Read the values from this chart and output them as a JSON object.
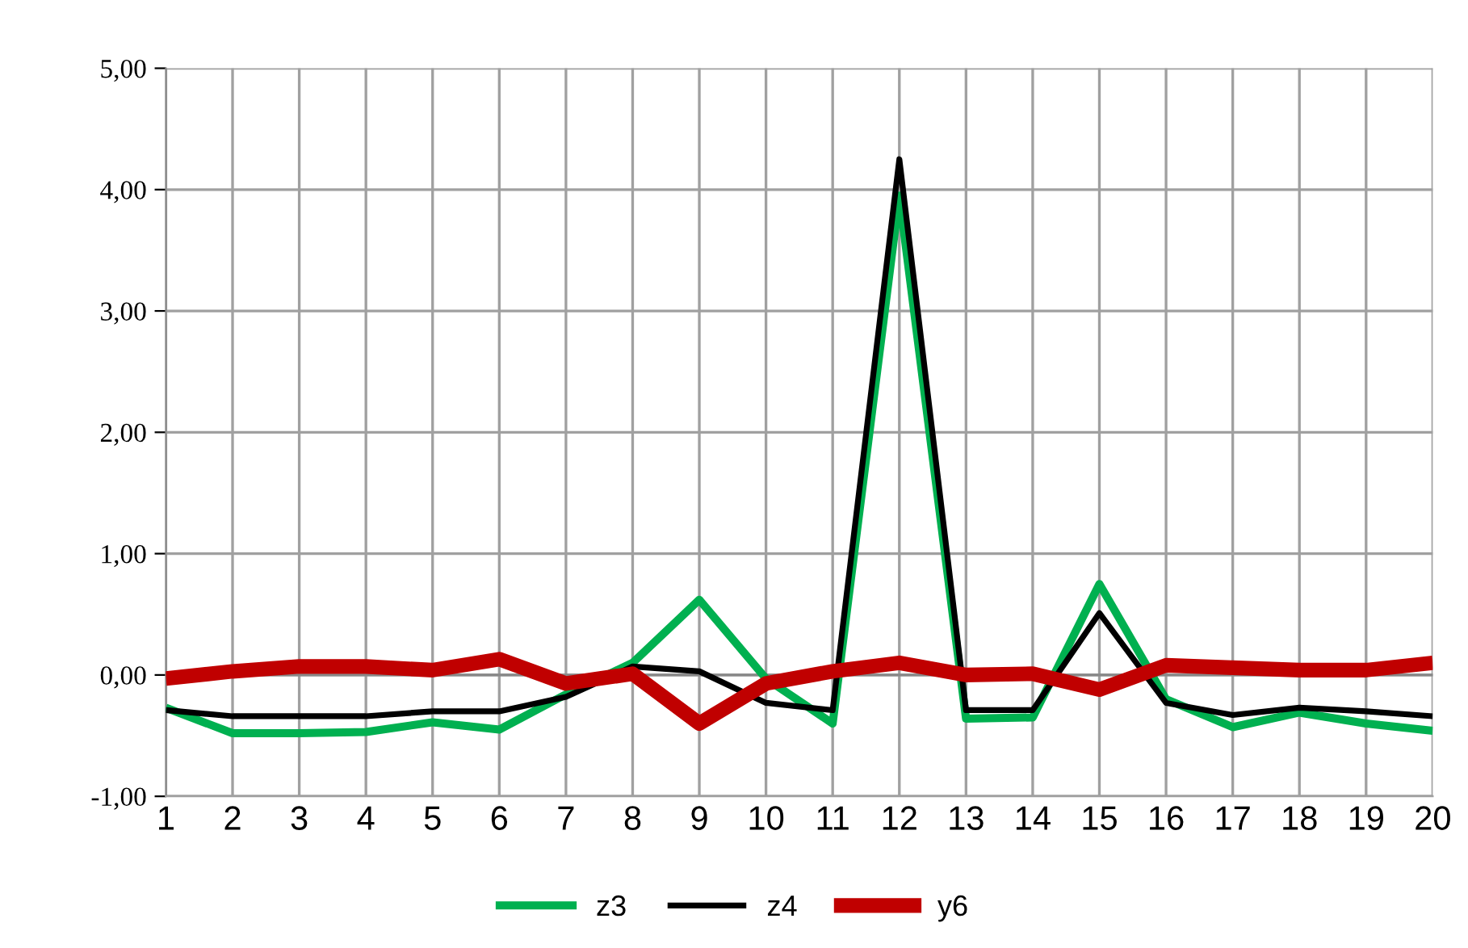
{
  "chart_data": {
    "type": "line",
    "categories": [
      "1",
      "2",
      "3",
      "4",
      "5",
      "6",
      "7",
      "8",
      "9",
      "10",
      "11",
      "12",
      "13",
      "14",
      "15",
      "16",
      "17",
      "18",
      "19",
      "20"
    ],
    "series": [
      {
        "name": "z3",
        "color": "#00b050",
        "values": [
          -0.27,
          -0.48,
          -0.48,
          -0.47,
          -0.39,
          -0.45,
          -0.16,
          0.1,
          0.62,
          -0.03,
          -0.4,
          3.95,
          -0.36,
          -0.35,
          0.75,
          -0.2,
          -0.43,
          -0.31,
          -0.4,
          -0.46
        ]
      },
      {
        "name": "z4",
        "color": "#000000",
        "values": [
          -0.29,
          -0.34,
          -0.34,
          -0.34,
          -0.3,
          -0.3,
          -0.18,
          0.07,
          0.03,
          -0.23,
          -0.29,
          4.25,
          -0.29,
          -0.29,
          0.51,
          -0.23,
          -0.33,
          -0.27,
          -0.3,
          -0.34
        ]
      },
      {
        "name": "y6",
        "color": "#c00000",
        "values": [
          -0.03,
          0.03,
          0.07,
          0.07,
          0.04,
          0.13,
          -0.07,
          0.01,
          -0.4,
          -0.07,
          0.03,
          0.1,
          0.0,
          0.01,
          -0.12,
          0.08,
          0.06,
          0.04,
          0.04,
          0.1
        ]
      }
    ],
    "ylim": [
      -1,
      5
    ],
    "yticks": [
      {
        "value": -1,
        "label": "-1,00"
      },
      {
        "value": 0,
        "label": "0,00"
      },
      {
        "value": 1,
        "label": "1,00"
      },
      {
        "value": 2,
        "label": "2,00"
      },
      {
        "value": 3,
        "label": "3,00"
      },
      {
        "value": 4,
        "label": "4,00"
      },
      {
        "value": 5,
        "label": "5,00"
      }
    ],
    "grid": true,
    "legend": "bottom",
    "marker": "none",
    "line_style": "solid"
  }
}
